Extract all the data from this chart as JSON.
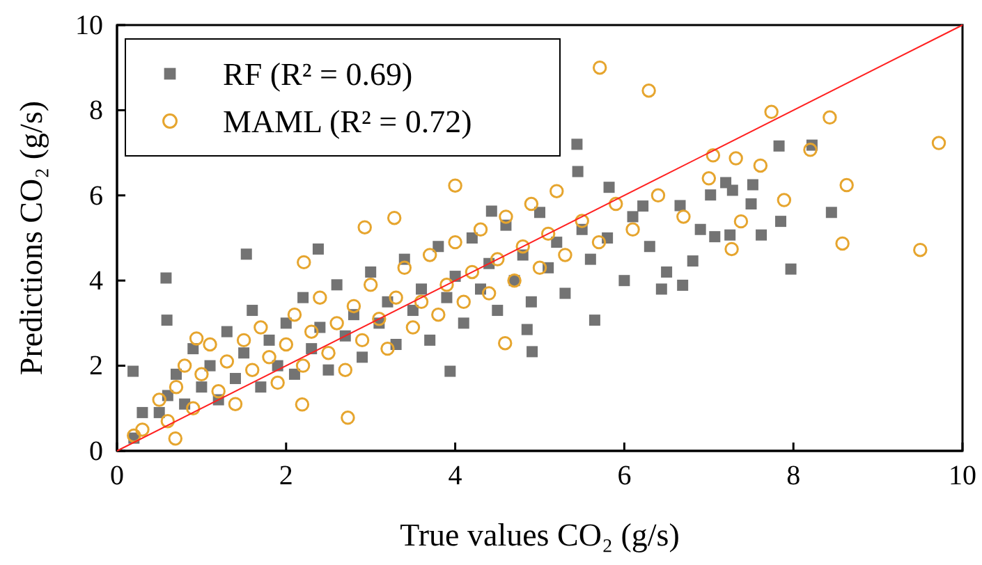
{
  "chart_data": {
    "type": "scatter",
    "xlabel": "True values CO₂ (g/s)",
    "ylabel": "Predictions CO₂ (g/s)",
    "xlim": [
      0,
      10
    ],
    "ylim": [
      0,
      10
    ],
    "xticks": [
      0,
      2,
      4,
      6,
      8,
      10
    ],
    "yticks": [
      0,
      2,
      4,
      6,
      8,
      10
    ],
    "grid": false,
    "legend": "top left",
    "series": [
      {
        "name": "RF (R² = 0.69)",
        "color": "#737373",
        "marker": "square",
        "x": [
          0.2,
          0.3,
          0.5,
          0.6,
          0.7,
          0.8,
          0.9,
          1.0,
          1.1,
          1.2,
          1.3,
          1.4,
          1.5,
          1.6,
          1.7,
          1.8,
          1.9,
          2.0,
          2.1,
          2.2,
          2.3,
          2.4,
          2.5,
          2.6,
          2.7,
          2.8,
          2.9,
          3.0,
          3.1,
          3.2,
          3.3,
          3.4,
          3.5,
          3.6,
          3.7,
          3.8,
          3.9,
          4.0,
          4.1,
          4.2,
          4.3,
          4.4,
          4.5,
          4.6,
          4.7,
          4.8,
          4.9,
          5.0,
          5.1,
          5.2,
          5.3,
          5.5,
          5.6,
          5.8,
          6.0,
          6.1,
          6.3,
          6.5,
          6.9,
          7.2,
          7.5,
          7.83,
          8.22,
          7.52,
          8.45,
          7.85,
          7.97,
          7.62,
          7.07,
          7.25,
          7.28,
          7.02,
          6.66,
          5.44,
          5.45,
          5.82,
          6.22,
          6.69,
          6.44,
          5.65,
          6.81,
          0.58,
          1.53,
          0.19,
          2.38,
          0.59,
          4.91,
          4.85,
          3.94,
          4.43
        ],
        "values": [
          0.3,
          0.9,
          0.9,
          1.3,
          1.8,
          1.1,
          2.4,
          1.5,
          2.0,
          1.2,
          2.8,
          1.7,
          2.3,
          3.3,
          1.5,
          2.6,
          2.0,
          3.0,
          1.8,
          3.6,
          2.4,
          2.9,
          1.9,
          3.9,
          2.7,
          3.2,
          2.2,
          4.2,
          3.0,
          3.5,
          2.5,
          4.5,
          3.3,
          3.8,
          2.6,
          4.8,
          3.6,
          4.1,
          3.0,
          5.0,
          3.8,
          4.4,
          3.3,
          5.3,
          4.0,
          4.6,
          3.5,
          5.6,
          4.3,
          4.9,
          3.7,
          5.2,
          4.5,
          5.0,
          4.0,
          5.5,
          4.8,
          4.2,
          5.2,
          6.3,
          5.8,
          7.16,
          7.18,
          6.25,
          5.6,
          5.39,
          4.27,
          5.07,
          5.03,
          5.07,
          6.12,
          6.01,
          5.76,
          7.2,
          6.56,
          6.19,
          5.75,
          3.89,
          3.8,
          3.07,
          4.46,
          4.06,
          4.62,
          1.87,
          4.74,
          3.07,
          2.33,
          2.85,
          1.87,
          5.63
        ]
      },
      {
        "name": "MAML (R² = 0.72)",
        "color": "#e6a52e",
        "marker": "circle",
        "x": [
          0.3,
          0.5,
          0.6,
          0.7,
          0.8,
          0.9,
          1.0,
          1.1,
          1.2,
          1.3,
          1.4,
          1.5,
          1.6,
          1.7,
          1.8,
          1.9,
          2.0,
          2.1,
          2.2,
          2.3,
          2.4,
          2.5,
          2.6,
          2.7,
          2.8,
          2.9,
          3.0,
          3.1,
          3.2,
          3.3,
          3.4,
          3.5,
          3.6,
          3.7,
          3.8,
          3.9,
          4.0,
          4.1,
          4.2,
          4.3,
          4.4,
          4.5,
          4.6,
          4.7,
          4.8,
          4.9,
          5.0,
          5.1,
          5.2,
          5.3,
          5.5,
          5.7,
          5.9,
          6.1,
          6.4,
          6.7,
          7.0,
          5.71,
          6.29,
          7.74,
          8.43,
          9.72,
          8.2,
          8.63,
          7.89,
          8.58,
          9.5,
          7.27,
          7.38,
          7.05,
          7.32,
          7.61,
          4.0,
          2.93,
          3.28,
          2.73,
          0.69,
          0.2,
          0.94,
          2.19,
          4.59,
          2.21
        ],
        "values": [
          0.5,
          1.2,
          0.7,
          1.5,
          2.0,
          1.0,
          1.8,
          2.5,
          1.4,
          2.1,
          1.1,
          2.6,
          1.9,
          2.9,
          2.2,
          1.6,
          2.5,
          3.2,
          2.0,
          2.8,
          3.6,
          2.3,
          3.0,
          1.9,
          3.4,
          2.6,
          3.9,
          3.1,
          2.4,
          3.6,
          4.3,
          2.9,
          3.5,
          4.6,
          3.2,
          3.9,
          4.9,
          3.5,
          4.2,
          5.2,
          3.7,
          4.5,
          5.5,
          4.0,
          4.8,
          5.8,
          4.3,
          5.1,
          6.1,
          4.6,
          5.4,
          4.9,
          5.8,
          5.2,
          6.0,
          5.5,
          6.4,
          9.0,
          8.46,
          7.96,
          7.83,
          7.23,
          7.07,
          6.24,
          5.89,
          4.87,
          4.72,
          4.74,
          5.39,
          6.94,
          6.87,
          6.7,
          6.23,
          5.25,
          5.47,
          0.78,
          0.29,
          0.36,
          2.64,
          1.09,
          2.53,
          4.43
        ]
      },
      {
        "type": "line",
        "color": "#ff2020",
        "line_style": "solid",
        "x": [
          0,
          10
        ],
        "values": [
          0,
          10
        ]
      }
    ]
  }
}
